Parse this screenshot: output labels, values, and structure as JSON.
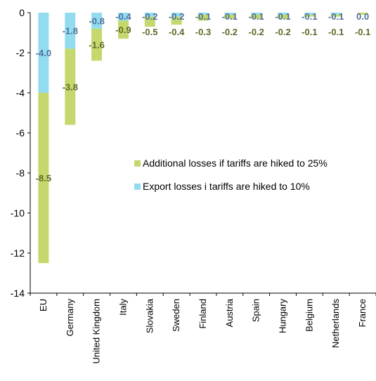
{
  "chart_data": {
    "type": "bar",
    "stacked": true,
    "categories": [
      "EU",
      "Germany",
      "United Kingdom",
      "Italy",
      "Slovakia",
      "Sweden",
      "Finland",
      "Austria",
      "Spain",
      "Hungary",
      "Belgium",
      "Netherlands",
      "France"
    ],
    "series": [
      {
        "name": "Export losses i tariffs are hiked to 10%",
        "color": "#93dcf0",
        "label_color": "#4f6f9a",
        "values": [
          -4.0,
          -1.8,
          -0.8,
          -0.4,
          -0.2,
          -0.2,
          -0.1,
          -0.1,
          -0.1,
          -0.1,
          -0.1,
          -0.1,
          0.0
        ],
        "labels": [
          "-4.0",
          "-1.8",
          "-0.8",
          "-0.4",
          "-0.2",
          "-0.2",
          "-0.1",
          "-0.1",
          "-0.1",
          "-0.1",
          "-0.1",
          "-0.1",
          "0.0"
        ]
      },
      {
        "name": "Additional losses if tariffs are hiked to 25%",
        "color": "#c5d86d",
        "label_color": "#5e6a2a",
        "values": [
          -8.5,
          -3.8,
          -1.6,
          -0.9,
          -0.5,
          -0.4,
          -0.3,
          -0.2,
          -0.2,
          -0.2,
          -0.1,
          -0.1,
          -0.1
        ],
        "labels": [
          "-8.5",
          "-3.8",
          "-1.6",
          "-0.9",
          "-0.5",
          "-0.4",
          "-0.3",
          "-0.2",
          "-0.2",
          "-0.2",
          "-0.1",
          "-0.1",
          "-0.1"
        ]
      }
    ],
    "ylim": [
      -14,
      0
    ],
    "yticks": [
      0,
      -2,
      -4,
      -6,
      -8,
      -10,
      -12,
      -14
    ],
    "ytick_labels": [
      "0",
      "-2",
      "-4",
      "-6",
      "-8",
      "-10",
      "-12",
      "-14"
    ],
    "legend": {
      "placement": "center-right",
      "entries": [
        "Additional losses if tariffs are hiked to 25%",
        "Export losses i tariffs are hiked to 10%"
      ]
    },
    "grid": false
  }
}
